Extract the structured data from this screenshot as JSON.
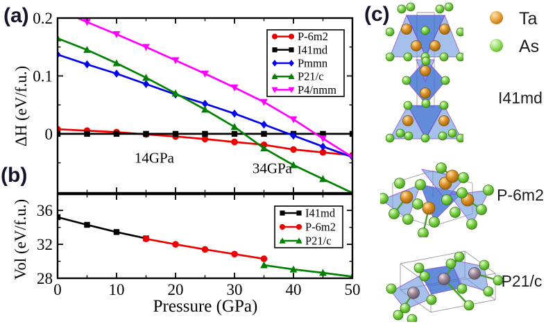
{
  "panels": {
    "a": "(a)",
    "b": "(b)",
    "c": "(c)"
  },
  "chart_data": [
    {
      "type": "line",
      "panel": "a",
      "title": "",
      "ylabel": "ΔH (eV/f.u.)",
      "xlabel": "Pressure (GPa)",
      "xlim": [
        0,
        50
      ],
      "ylim": [
        -0.102,
        0.2
      ],
      "grid": false,
      "legend_position": "top-right",
      "x": [
        0,
        5,
        10,
        15,
        20,
        25,
        30,
        35,
        40,
        45,
        50
      ],
      "xticks_major": [
        0,
        10,
        20,
        30,
        40,
        50
      ],
      "xticks_minor": [
        5,
        15,
        25,
        35,
        45
      ],
      "yticks_major": [
        0,
        0.1,
        0.2
      ],
      "ytick_labels": [
        "0",
        "0.1",
        "0.2"
      ],
      "yticks_minor": [
        -0.05,
        0.05,
        0.15
      ],
      "series": [
        {
          "name": "P-6m2",
          "color": "#ee0000",
          "marker": "circle",
          "values": [
            0.008,
            0.0055,
            0.003,
            -0.001,
            -0.0045,
            -0.009,
            -0.014,
            -0.019,
            -0.027,
            -0.032,
            -0.037
          ]
        },
        {
          "name": "I41md",
          "color": "#000000",
          "marker": "square",
          "values": [
            0,
            0,
            0,
            0,
            0,
            0,
            0,
            0,
            0,
            0,
            0
          ]
        },
        {
          "name": "Pmmn",
          "color": "#0000ee",
          "marker": "diamond",
          "values": [
            0.137,
            0.12,
            0.104,
            0.086,
            0.068,
            0.052,
            0.035,
            0.016,
            -0.003,
            -0.022,
            -0.04
          ]
        },
        {
          "name": "P21/c",
          "color": "#008000",
          "marker": "triangle-up",
          "values": [
            0.165,
            0.145,
            0.122,
            0.097,
            0.07,
            0.042,
            0.012,
            -0.025,
            -0.054,
            -0.078,
            -0.102
          ]
        },
        {
          "name": "P4/nmm",
          "color": "#ff00ff",
          "marker": "triangle-down",
          "values": [
            0.215,
            0.193,
            0.172,
            0.15,
            0.127,
            0.104,
            0.08,
            0.055,
            0.025,
            -0.008,
            -0.04
          ]
        }
      ],
      "annotations": [
        {
          "text": "14GPa",
          "x": 16.4,
          "y": -0.05
        },
        {
          "text": "34GPa",
          "x": 36.4,
          "y": -0.068
        }
      ]
    },
    {
      "type": "line",
      "panel": "b",
      "title": "",
      "ylabel": "Vol (eV/f.u.)",
      "xlabel": "Pressure (GPa)",
      "xlim": [
        0,
        50
      ],
      "ylim": [
        28,
        37.9
      ],
      "grid": false,
      "legend_position": "top-right",
      "xticks_major": [
        0,
        10,
        20,
        30,
        40,
        50
      ],
      "xtick_labels": [
        "0",
        "10",
        "20",
        "30",
        "40",
        "50"
      ],
      "xticks_minor": [
        5,
        15,
        25,
        35,
        45
      ],
      "yticks_major": [
        28,
        32,
        36
      ],
      "ytick_labels": [
        "28",
        "32",
        "36"
      ],
      "yticks_minor": [
        30,
        34
      ],
      "series": [
        {
          "name": "I41md",
          "color": "#000000",
          "marker": "square",
          "x": [
            0,
            5,
            10,
            15
          ],
          "values": [
            35.2,
            34.3,
            33.45,
            32.7
          ]
        },
        {
          "name": "P-6m2",
          "color": "#ee0000",
          "marker": "circle",
          "x": [
            15,
            20,
            25,
            30,
            35
          ],
          "values": [
            32.65,
            32.0,
            31.4,
            30.85,
            30.3
          ]
        },
        {
          "name": "P21/c",
          "color": "#008000",
          "marker": "triangle-up",
          "x": [
            35,
            40,
            45,
            50
          ],
          "values": [
            29.55,
            29.05,
            28.65,
            28.2
          ]
        }
      ]
    }
  ],
  "panel_c": {
    "atom_legend": [
      {
        "symbol": "Ta",
        "color": "#dd9327"
      },
      {
        "symbol": "As",
        "color": "#6cc63f"
      }
    ],
    "structures": [
      {
        "label": "I41md"
      },
      {
        "label": "P-6m2"
      },
      {
        "label": "P21/c"
      }
    ]
  }
}
